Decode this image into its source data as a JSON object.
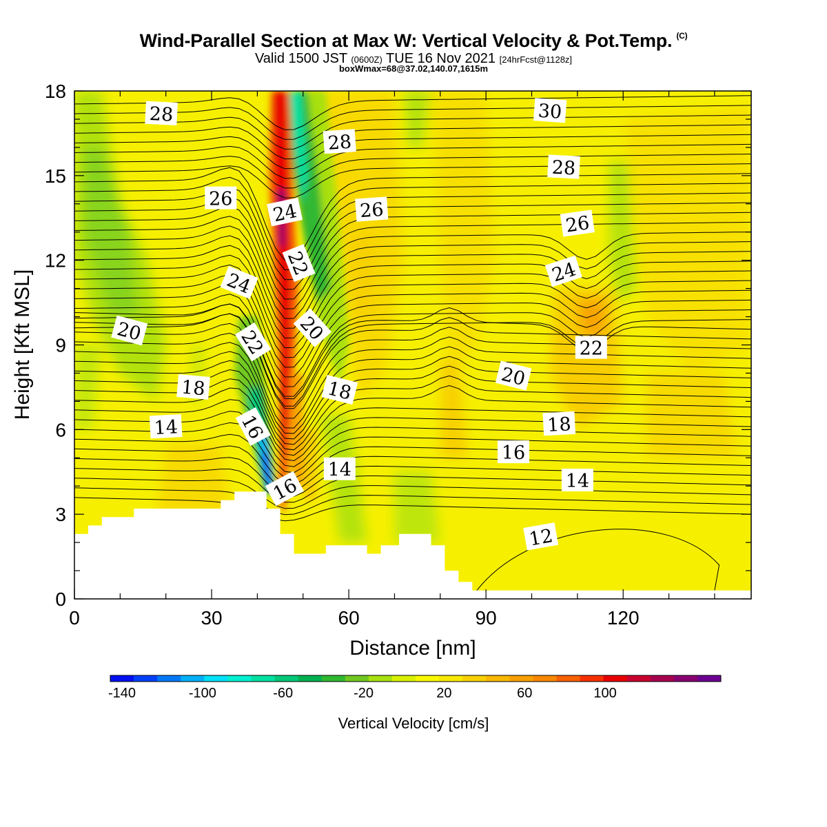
{
  "title": {
    "main": "Wind-Parallel Section at Max W: Vertical Velocity & Pot.Temp.",
    "copyright": "(C)",
    "valid_prefix": "Valid 1500 JST",
    "valid_utc": "(0600Z)",
    "valid_date": "TUE 16 Nov 2021",
    "forecast": "[24hrFcst@1128z]",
    "boxwmax": "boxWmax=68@37.02,140.07,1615m"
  },
  "chart_data": {
    "type": "heatmap",
    "xlabel": "Distance [nm]",
    "ylabel": "Height [Kft MSL]",
    "xlim": [
      0,
      148
    ],
    "ylim": [
      0,
      18
    ],
    "x_ticks": [
      0,
      30,
      60,
      90,
      120
    ],
    "y_ticks": [
      0,
      3,
      6,
      9,
      12,
      15,
      18
    ],
    "colorbar": {
      "title": "Vertical Velocity [cm/s]",
      "min": -140,
      "max": 140,
      "step": 10,
      "tick_labels": [
        -140,
        -100,
        -60,
        -20,
        20,
        60,
        100
      ],
      "colors": [
        "#0010f0",
        "#0040f8",
        "#0078f8",
        "#00b0f8",
        "#00e0f8",
        "#00f0d0",
        "#00e0a0",
        "#00c878",
        "#00b050",
        "#30b830",
        "#70c820",
        "#a8e010",
        "#d8f000",
        "#f8f800",
        "#f8e800",
        "#f8d000",
        "#f8b800",
        "#f8a000",
        "#f88800",
        "#f86000",
        "#f83000",
        "#e80000",
        "#c80030",
        "#a80050",
        "#880070",
        "#6c0090"
      ]
    },
    "contour_labels": [
      {
        "text": "28",
        "x": 19,
        "y": 17.2,
        "angle": 3
      },
      {
        "text": "28",
        "x": 58,
        "y": 16.2,
        "angle": -4
      },
      {
        "text": "30",
        "x": 104,
        "y": 17.3,
        "angle": 4
      },
      {
        "text": "28",
        "x": 107,
        "y": 15.3,
        "angle": 3
      },
      {
        "text": "26",
        "x": 32,
        "y": 14.2,
        "angle": 0
      },
      {
        "text": "24",
        "x": 46,
        "y": 13.7,
        "angle": -12
      },
      {
        "text": "26",
        "x": 65,
        "y": 13.8,
        "angle": -4
      },
      {
        "text": "26",
        "x": 110,
        "y": 13.3,
        "angle": -8
      },
      {
        "text": "22",
        "x": 49,
        "y": 11.9,
        "angle": 68
      },
      {
        "text": "24",
        "x": 36,
        "y": 11.2,
        "angle": 22
      },
      {
        "text": "24",
        "x": 107,
        "y": 11.6,
        "angle": -18
      },
      {
        "text": "20",
        "x": 12,
        "y": 9.5,
        "angle": 15
      },
      {
        "text": "20",
        "x": 52,
        "y": 9.6,
        "angle": 48
      },
      {
        "text": "22",
        "x": 39,
        "y": 9.1,
        "angle": 58
      },
      {
        "text": "22",
        "x": 113,
        "y": 8.9,
        "angle": 0
      },
      {
        "text": "20",
        "x": 96,
        "y": 7.9,
        "angle": 14
      },
      {
        "text": "18",
        "x": 26,
        "y": 7.5,
        "angle": 5
      },
      {
        "text": "18",
        "x": 58,
        "y": 7.4,
        "angle": 14
      },
      {
        "text": "18",
        "x": 106,
        "y": 6.2,
        "angle": -3
      },
      {
        "text": "14",
        "x": 20,
        "y": 6.1,
        "angle": -3
      },
      {
        "text": "16",
        "x": 39,
        "y": 6.1,
        "angle": 62
      },
      {
        "text": "16",
        "x": 96,
        "y": 5.2,
        "angle": 0
      },
      {
        "text": "14",
        "x": 58,
        "y": 4.6,
        "angle": 0
      },
      {
        "text": "16",
        "x": 46,
        "y": 3.9,
        "angle": -28
      },
      {
        "text": "14",
        "x": 110,
        "y": 4.2,
        "angle": 0
      },
      {
        "text": "12",
        "x": 102,
        "y": 2.2,
        "angle": -10
      }
    ]
  }
}
